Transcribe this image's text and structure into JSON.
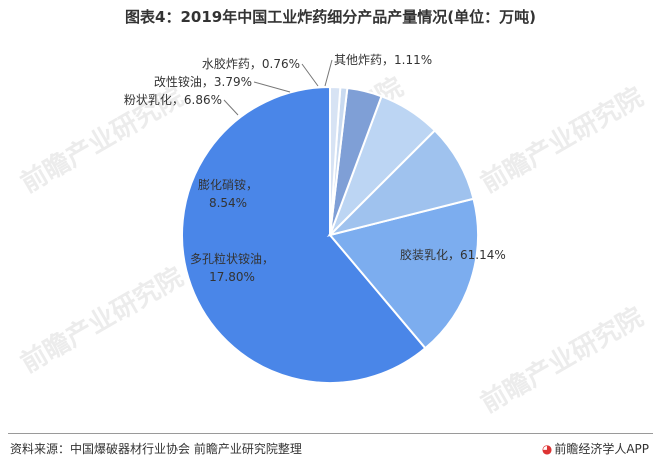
{
  "title": "图表4：2019年中国工业炸药细分产品产量情况(单位：万吨)",
  "chart_data": {
    "type": "pie",
    "slices": [
      {
        "name": "胶装乳化",
        "value": 61.14,
        "label": "胶装乳化，61.14%",
        "color": "#4a86e8"
      },
      {
        "name": "多孔粒状铵油",
        "value": 17.8,
        "label": "多孔粒状铵油，17.80%",
        "color": "#7cadef"
      },
      {
        "name": "膨化硝铵",
        "value": 8.54,
        "label": "膨化硝铵，8.54%",
        "color": "#9fc2ee"
      },
      {
        "name": "粉状乳化",
        "value": 6.86,
        "label": "粉状乳化，6.86%",
        "color": "#bcd5f3"
      },
      {
        "name": "改性铵油",
        "value": 3.79,
        "label": "改性铵油，3.79%",
        "color": "#7f9fd6"
      },
      {
        "name": "水胶炸药",
        "value": 0.76,
        "label": "水胶炸药，0.76%",
        "color": "#c9daf0"
      },
      {
        "name": "其他炸药",
        "value": 1.11,
        "label": "其他炸药，1.11%",
        "color": "#d7e3f4"
      }
    ]
  },
  "footer": {
    "source": "资料来源：中国爆破器材行业协会 前瞻产业研究院整理",
    "brand": "前瞻经济学人APP",
    "brand_icon": "qianzhan-logo-icon"
  },
  "watermark": "前瞻产业研究院"
}
